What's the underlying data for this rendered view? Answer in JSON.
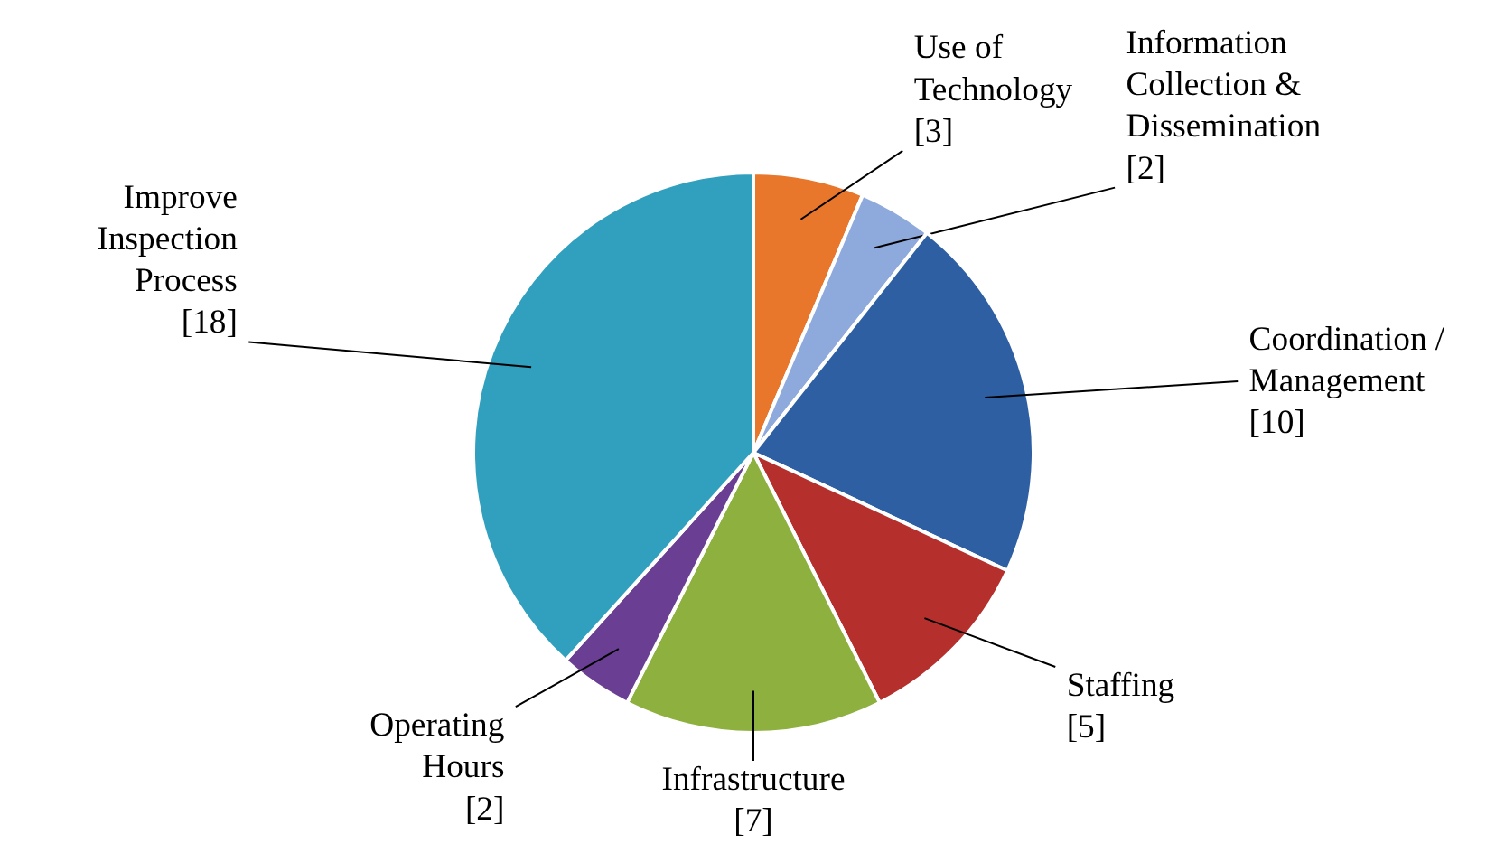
{
  "chart_data": {
    "type": "pie",
    "categories": [
      "Use of Technology",
      "Information Collection & Dissemination",
      "Coordination / Management",
      "Staffing",
      "Infrastructure",
      "Operating Hours",
      "Improve Inspection Process"
    ],
    "values": [
      3,
      2,
      10,
      5,
      7,
      2,
      18
    ],
    "colors": [
      "#e8762b",
      "#8ea9db",
      "#2e5fa3",
      "#b5302c",
      "#8db03e",
      "#6a3f93",
      "#31a0bf"
    ],
    "value_labels": [
      "[3]",
      "[2]",
      "[10]",
      "[5]",
      "[7]",
      "[2]",
      "[18]"
    ]
  }
}
